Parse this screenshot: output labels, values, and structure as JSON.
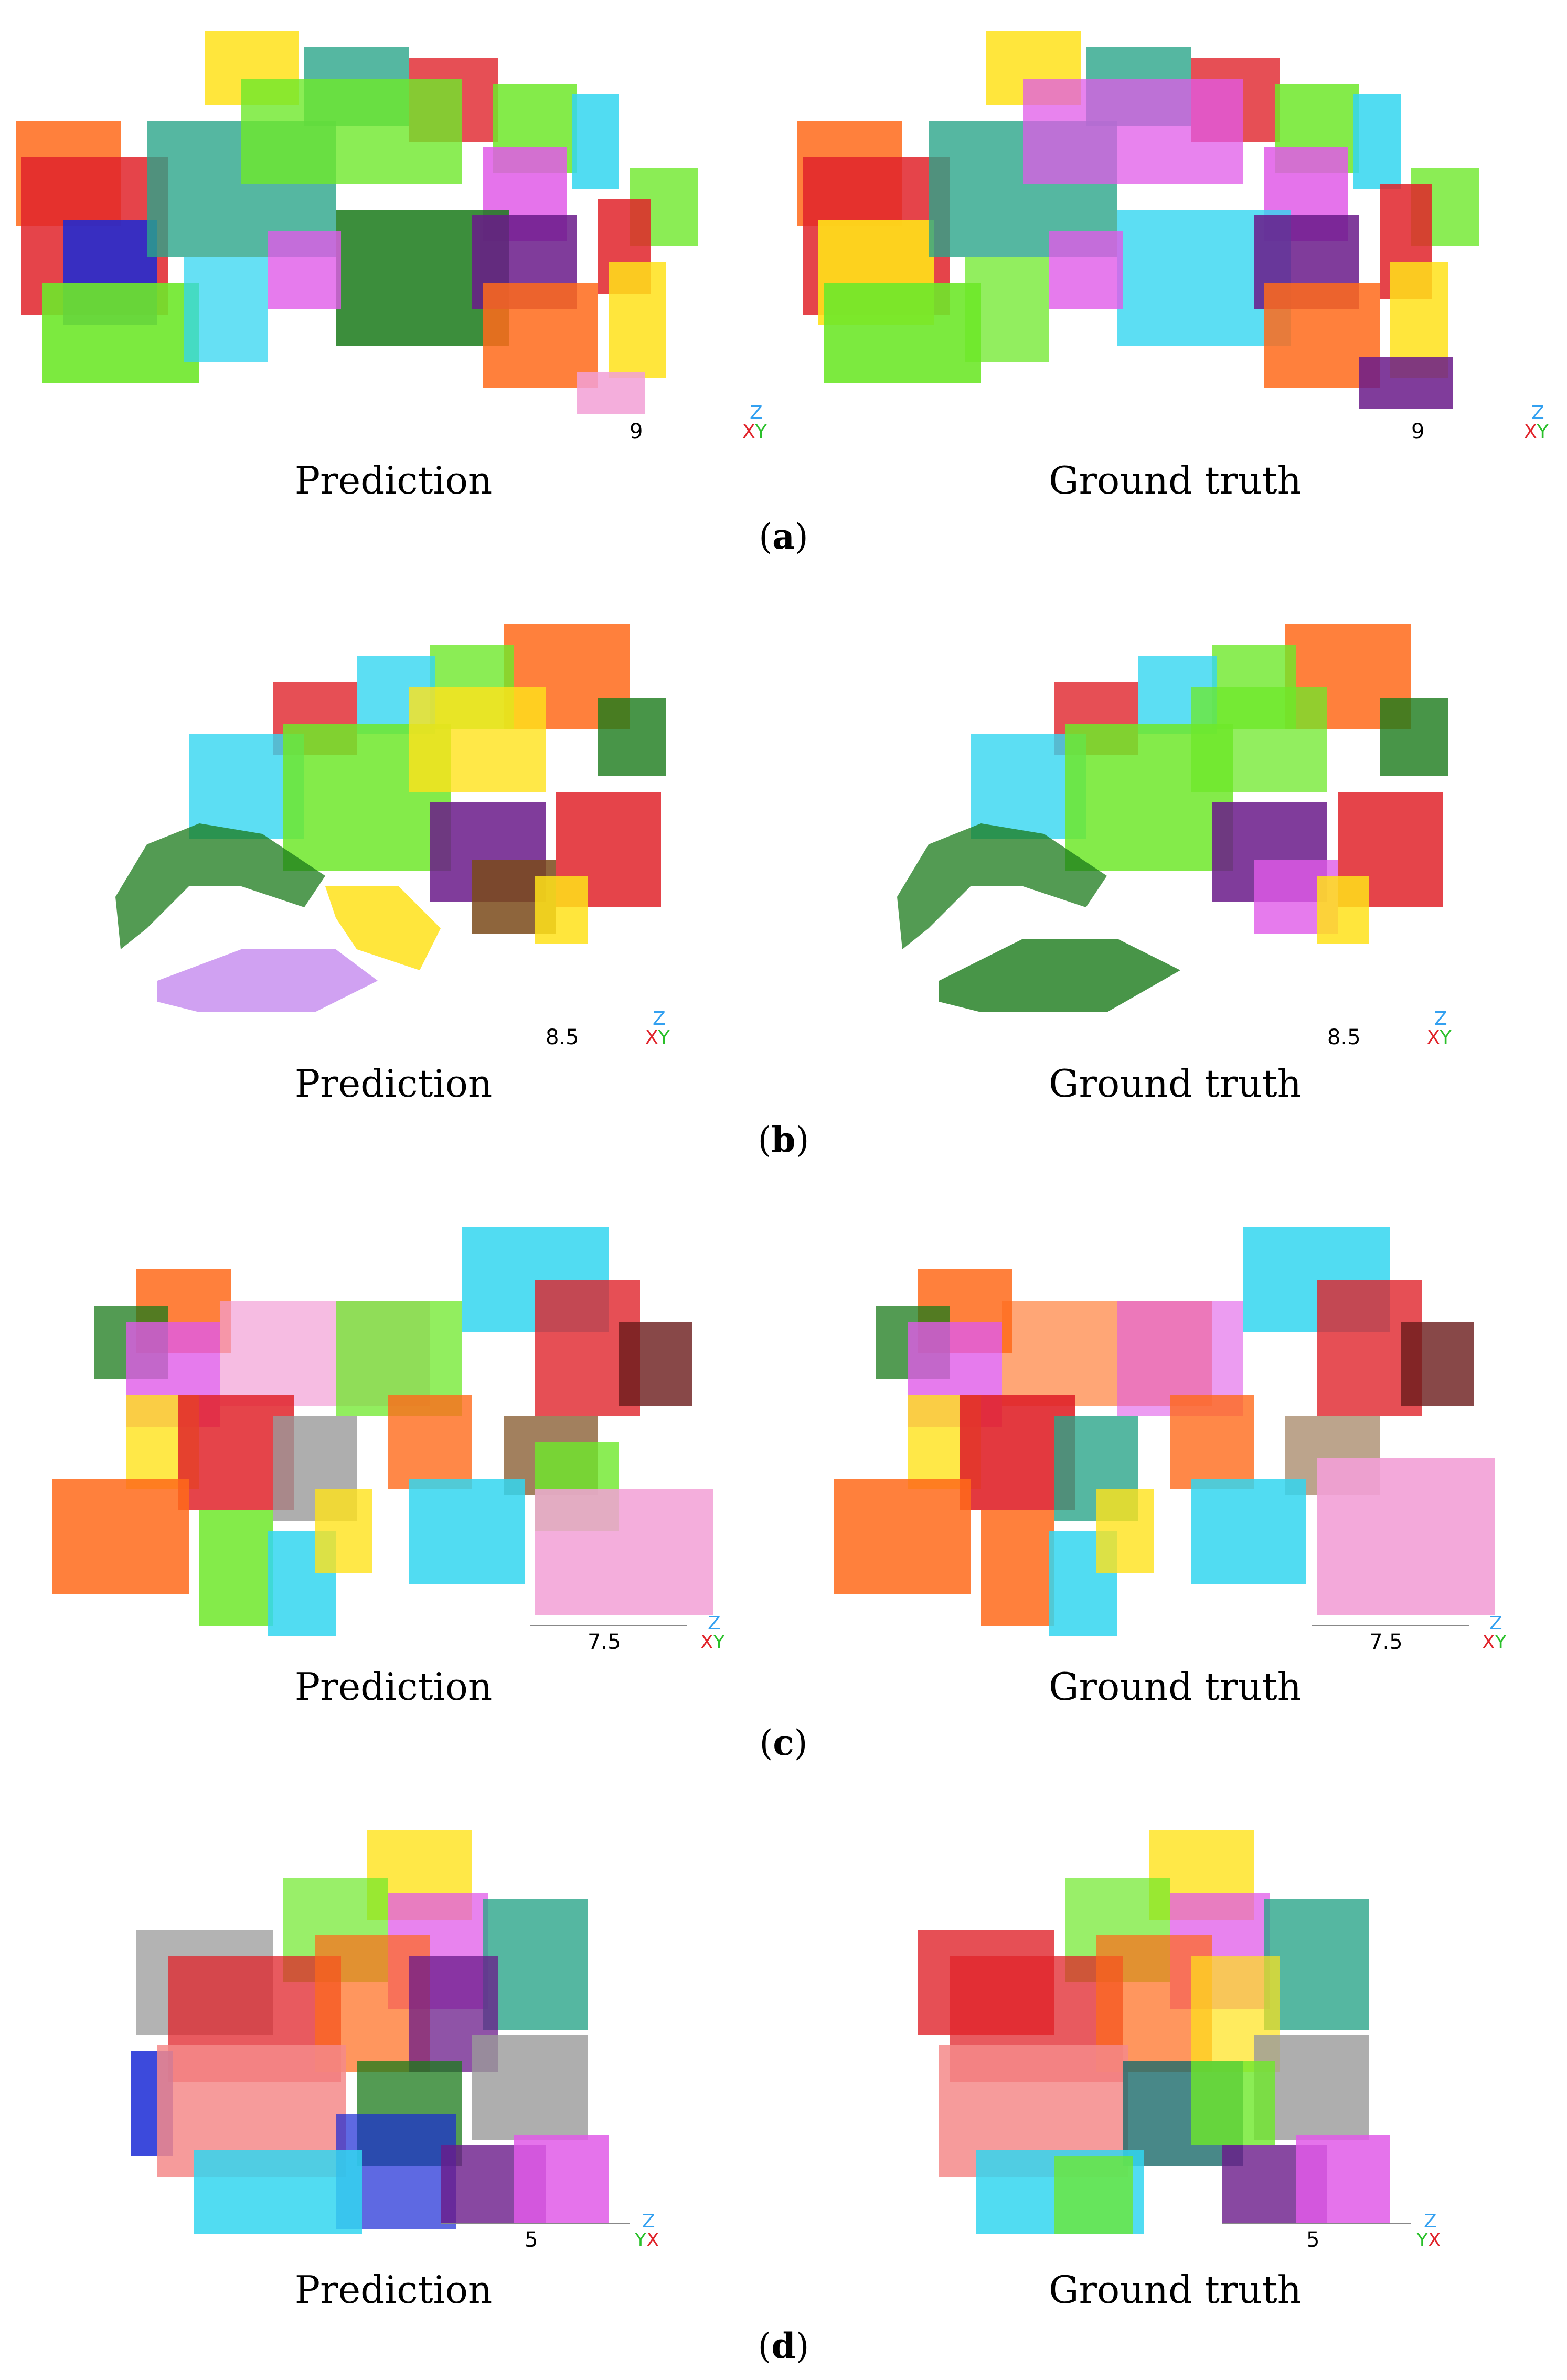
{
  "panels": [
    {
      "id": "a",
      "label_open": "(",
      "label_letter": "a",
      "label_close": ")",
      "prediction_caption": "Prediction",
      "ground_truth_caption": "Ground truth",
      "scale_value": "9",
      "axis_labels": {
        "z": "Z",
        "x": "X",
        "y": "Y"
      }
    },
    {
      "id": "b",
      "label_open": "(",
      "label_letter": "b",
      "label_close": ")",
      "prediction_caption": "Prediction",
      "ground_truth_caption": "Ground truth",
      "scale_value": "8.5",
      "axis_labels": {
        "z": "Z",
        "x": "X",
        "y": "Y"
      }
    },
    {
      "id": "c",
      "label_open": "(",
      "label_letter": "c",
      "label_close": ")",
      "prediction_caption": "Prediction",
      "ground_truth_caption": "Ground truth",
      "scale_value": "7.5",
      "axis_labels": {
        "z": "Z",
        "x": "X",
        "y": "Y"
      }
    },
    {
      "id": "d",
      "label_open": "(",
      "label_letter": "d",
      "label_close": ")",
      "prediction_caption": "Prediction",
      "ground_truth_caption": "Ground truth",
      "scale_value": "5",
      "axis_labels": {
        "z": "Z",
        "x": "Y",
        "y": "X"
      }
    }
  ],
  "colors": {
    "red": "#e0232a",
    "orange": "#ff6a1a",
    "yellow": "#ffe21a",
    "lime": "#6ee82a",
    "green": "#1a7a1a",
    "teal": "#2aa58a",
    "cyan": "#33d6f0",
    "blue": "#1a2ad6",
    "purple": "#6a1a8a",
    "magenta": "#e05ae8",
    "pink": "#f2a0d6",
    "salmon": "#f58a8a",
    "grey": "#9a9a9a",
    "brown": "#7a4a1a",
    "darkteal": "#1a6a6a",
    "lavender": "#c890f0"
  }
}
